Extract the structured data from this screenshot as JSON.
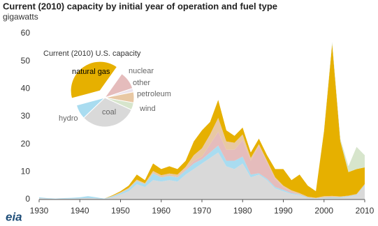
{
  "chart_data": [
    {
      "type": "stacked-area",
      "title": "Current (2010) capacity by initial year of operation and fuel type",
      "subtitle": "gigawatts",
      "logo": "eia",
      "x": [
        1930,
        1932,
        1934,
        1936,
        1938,
        1940,
        1942,
        1944,
        1946,
        1948,
        1950,
        1952,
        1954,
        1956,
        1958,
        1960,
        1962,
        1964,
        1966,
        1968,
        1970,
        1972,
        1974,
        1976,
        1978,
        1980,
        1982,
        1984,
        1986,
        1988,
        1990,
        1992,
        1994,
        1996,
        1998,
        2000,
        2002,
        2004,
        2006,
        2008,
        2010
      ],
      "series": [
        {
          "name": "coal",
          "color": "#d9d9d9",
          "values": [
            0.5,
            0.3,
            0.2,
            0.3,
            0.3,
            0.4,
            0.5,
            0.4,
            0.2,
            0.8,
            1.8,
            3,
            5.5,
            4.5,
            7,
            6.5,
            7,
            6.5,
            9,
            11,
            13,
            15,
            17,
            12,
            11,
            13,
            8,
            9,
            7,
            4,
            3,
            2,
            1.5,
            0.5,
            0.3,
            0.5,
            0.5,
            0.5,
            1,
            1.5,
            5
          ]
        },
        {
          "name": "hydro",
          "color": "#a9dcf0",
          "values": [
            0.3,
            0.2,
            0.1,
            0.2,
            0.3,
            0.4,
            0.7,
            0.4,
            0.1,
            0.3,
            0.5,
            0.8,
            1.2,
            1,
            2.5,
            1.5,
            1.5,
            1.5,
            1.5,
            2,
            1.5,
            2,
            2.5,
            2,
            3,
            2.5,
            1,
            0.5,
            0.5,
            0.5,
            0.5,
            0.3,
            0.3,
            0.2,
            0.1,
            0.2,
            0.3,
            0.3,
            0.2,
            0.2,
            0.3
          ]
        },
        {
          "name": "nuclear",
          "color": "#e5bcbc",
          "values": [
            0,
            0,
            0,
            0,
            0,
            0,
            0,
            0,
            0,
            0,
            0,
            0,
            0,
            0,
            0,
            0,
            0,
            0.2,
            0.5,
            1,
            1,
            3,
            5,
            4,
            4,
            6,
            5,
            10,
            6,
            3,
            1,
            0.5,
            0,
            0,
            0,
            0,
            0,
            0,
            0,
            0,
            0
          ]
        },
        {
          "name": "petroleum",
          "color": "#e8c8a4",
          "values": [
            0,
            0,
            0,
            0,
            0,
            0,
            0,
            0,
            0,
            0.2,
            0.3,
            0.4,
            0.5,
            0.4,
            0.8,
            0.8,
            0.9,
            0.8,
            0.8,
            2,
            3,
            3.5,
            5,
            3,
            2.5,
            2,
            1,
            0.5,
            0.5,
            0.5,
            0.5,
            0.5,
            0.5,
            0.3,
            0.2,
            0.5,
            0.5,
            0.3,
            0.2,
            0.3,
            0.3
          ]
        },
        {
          "name": "natural gas",
          "color": "#e6b000",
          "values": [
            0,
            0,
            0,
            0,
            0,
            0,
            0,
            0,
            0,
            0.2,
            0.4,
            0.8,
            1.8,
            1.1,
            2.7,
            2.2,
            2.6,
            2,
            2.2,
            5,
            6.5,
            4.5,
            6.5,
            4,
            2.5,
            2.5,
            2,
            2,
            2,
            3,
            6,
            3.7,
            6.7,
            4,
            2.4,
            23.5,
            55,
            20,
            8.5,
            9,
            6
          ]
        },
        {
          "name": "wind",
          "color": "#d7e5cc",
          "values": [
            0,
            0,
            0,
            0,
            0,
            0,
            0,
            0,
            0,
            0,
            0,
            0,
            0,
            0,
            0,
            0,
            0,
            0,
            0,
            0,
            0,
            0,
            0,
            0,
            0,
            0,
            0,
            0,
            0,
            0,
            0,
            0,
            0,
            0,
            0,
            0.3,
            0.7,
            0.9,
            2.1,
            8,
            4.4
          ]
        }
      ],
      "xlim": [
        1930,
        2010
      ],
      "xticks": [
        1930,
        1940,
        1950,
        1960,
        1970,
        1980,
        1990,
        2000,
        2010
      ],
      "ylim": [
        0,
        60
      ],
      "yticks": [
        0,
        10,
        20,
        30,
        40,
        50,
        60
      ]
    },
    {
      "type": "pie",
      "title": "Current (2010) U.S. capacity",
      "categories": [
        "natural gas",
        "nuclear",
        "other",
        "petroleum",
        "wind",
        "coal",
        "hydro"
      ],
      "values": [
        39,
        10,
        2,
        6,
        4,
        31,
        8
      ],
      "colors": [
        "#e6b000",
        "#e5bcbc",
        "#ebe3ee",
        "#e8c8a4",
        "#d7e5cc",
        "#d9d9d9",
        "#a9dcf0"
      ]
    }
  ]
}
